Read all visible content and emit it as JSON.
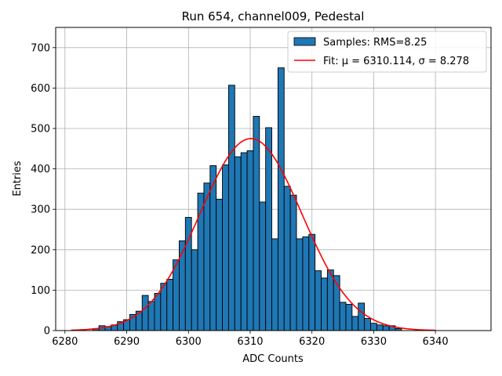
{
  "chart_data": {
    "type": "bar",
    "title": "Run 654, channel009, Pedestal",
    "xlabel": "ADC Counts",
    "ylabel": "Entries",
    "xlim": [
      6278.5,
      6349
    ],
    "ylim": [
      0,
      750
    ],
    "xticks": [
      6280,
      6290,
      6300,
      6310,
      6320,
      6330,
      6340
    ],
    "yticks": [
      0,
      100,
      200,
      300,
      400,
      500,
      600,
      700
    ],
    "grid": true,
    "legend_position": "top-right",
    "bin_width": 1,
    "bins_x": [
      6285,
      6286,
      6287,
      6288,
      6289,
      6290,
      6291,
      6292,
      6293,
      6294,
      6295,
      6296,
      6297,
      6298,
      6299,
      6300,
      6301,
      6302,
      6303,
      6304,
      6305,
      6306,
      6307,
      6308,
      6309,
      6310,
      6311,
      6312,
      6313,
      6314,
      6315,
      6316,
      6317,
      6318,
      6319,
      6320,
      6321,
      6322,
      6323,
      6324,
      6325,
      6326,
      6327,
      6328,
      6329,
      6330,
      6331,
      6332,
      6333,
      6334
    ],
    "series": [
      {
        "name": "Samples: RMS=8.25",
        "kind": "histogram",
        "color": "#1f77b4",
        "edgecolor": "#000000",
        "values": [
          5,
          12,
          10,
          14,
          22,
          27,
          40,
          48,
          87,
          72,
          92,
          117,
          127,
          175,
          222,
          280,
          200,
          340,
          365,
          408,
          325,
          410,
          607,
          430,
          440,
          445,
          530,
          318,
          502,
          227,
          650,
          357,
          335,
          227,
          232,
          238,
          148,
          130,
          150,
          136,
          70,
          65,
          35,
          68,
          30,
          18,
          14,
          12,
          12,
          5
        ]
      },
      {
        "name": "Fit: μ = 6310.114, σ = 8.278",
        "kind": "line",
        "color": "#ff0000",
        "mu": 6310.114,
        "sigma": 8.278,
        "amplitude": 475,
        "x_range": [
          6281,
          6340
        ]
      }
    ]
  }
}
